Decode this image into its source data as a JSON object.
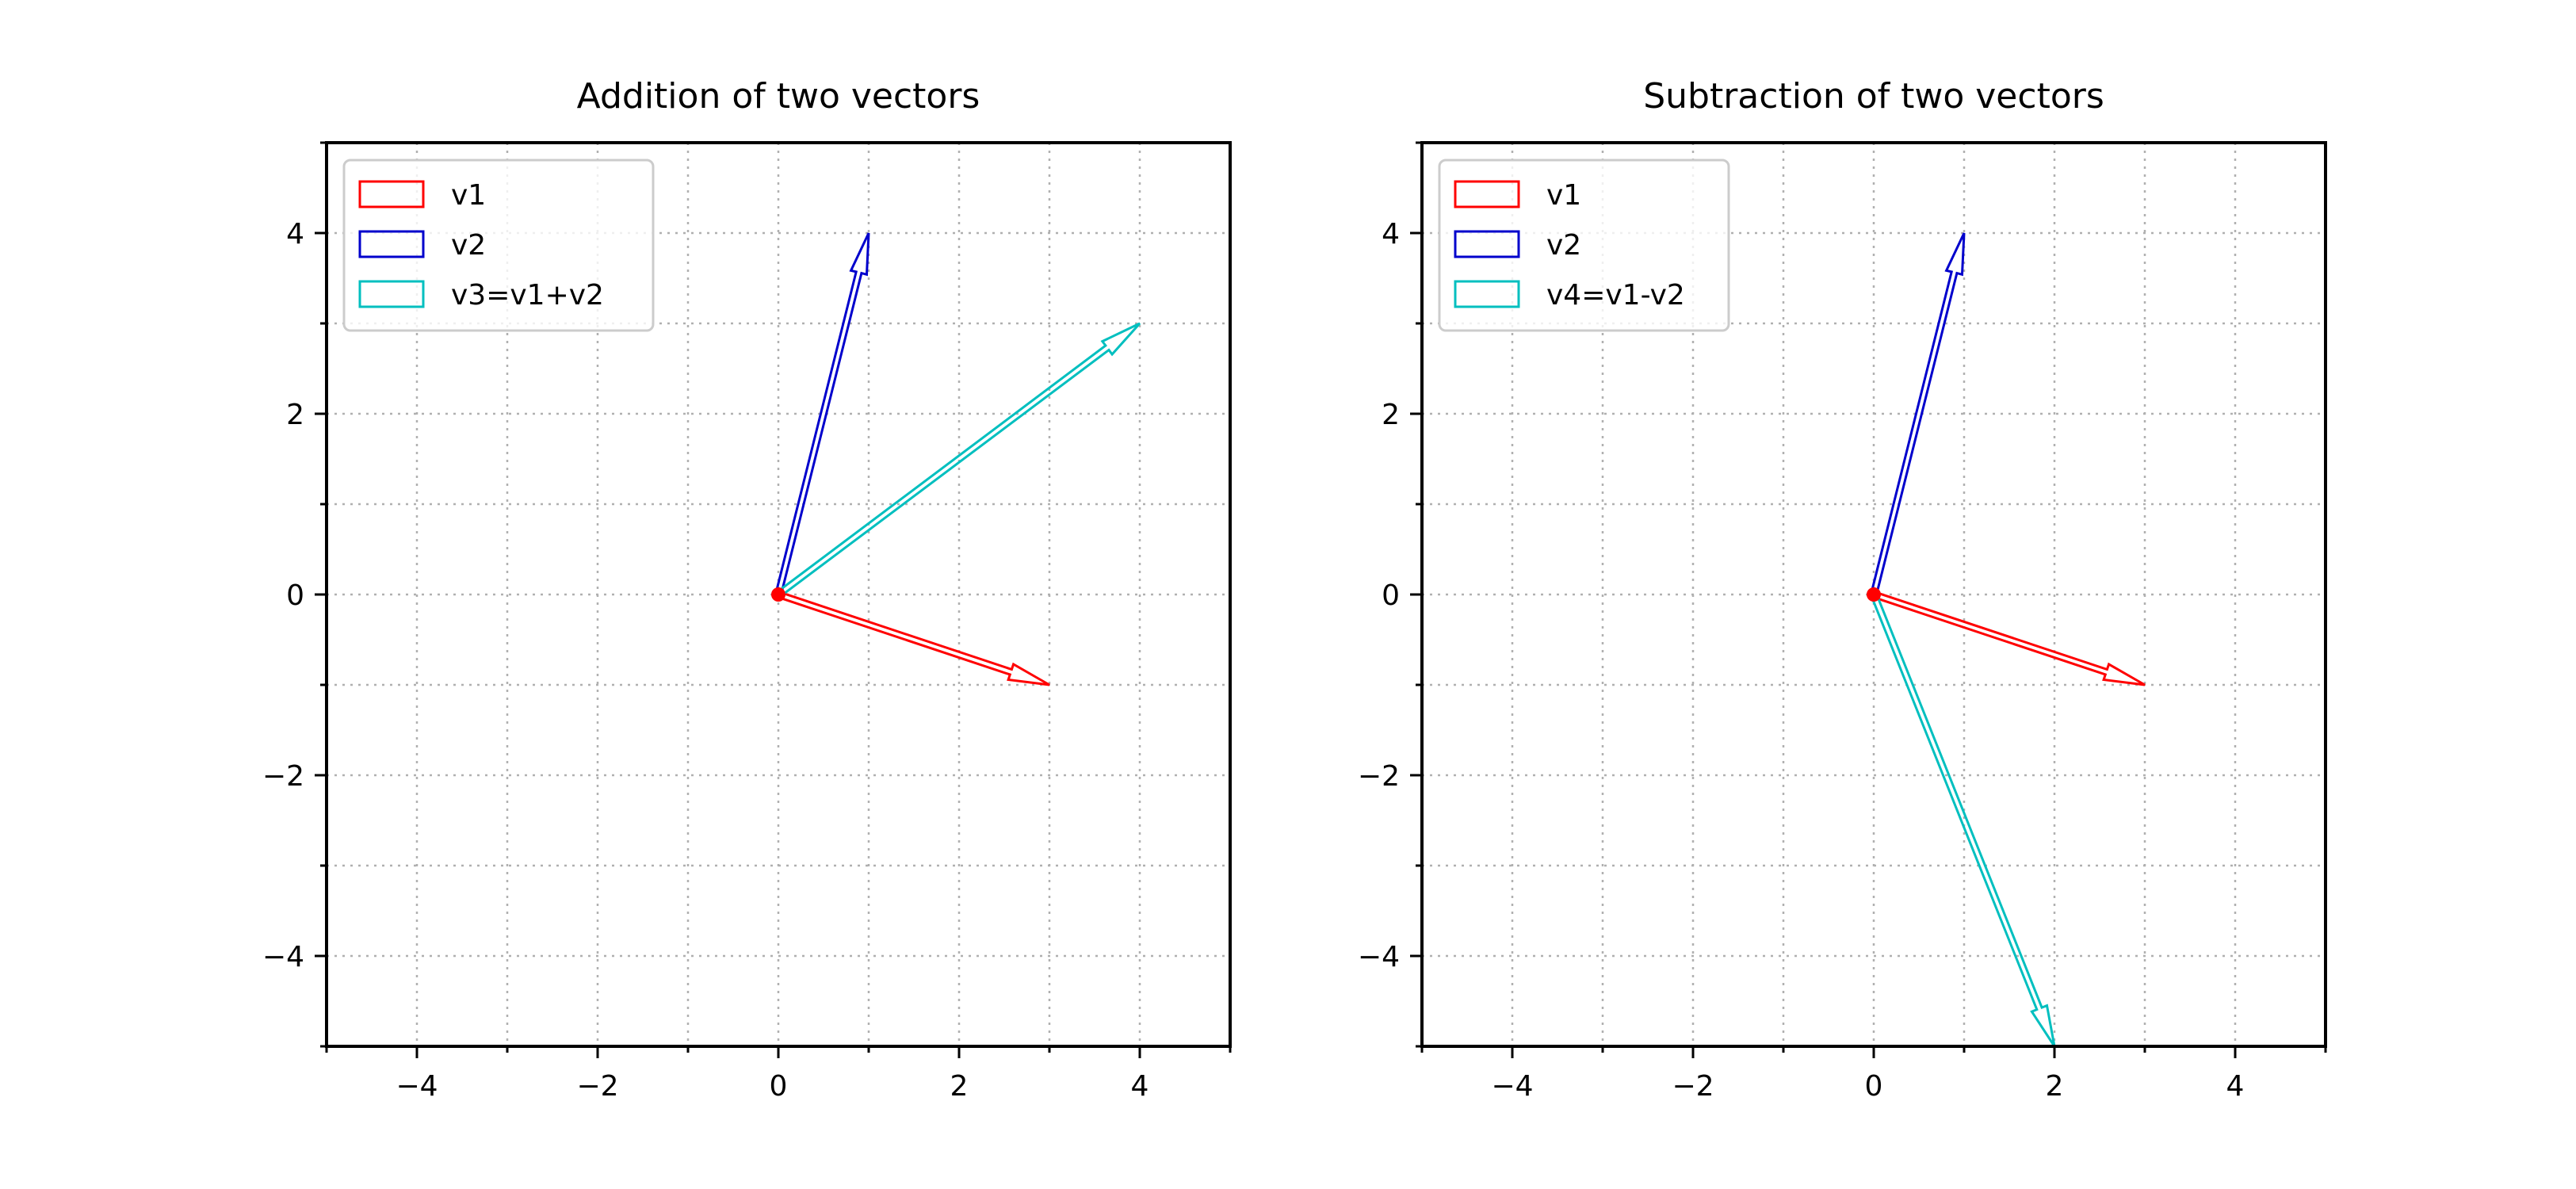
{
  "chart_data": [
    {
      "type": "vector",
      "title": "Addition of two vectors",
      "xlim": [
        -5,
        5
      ],
      "ylim": [
        -5,
        5
      ],
      "major_ticks": [
        -4,
        -2,
        0,
        2,
        4
      ],
      "minor_ticks": [
        -5,
        -3,
        -1,
        1,
        3,
        5
      ],
      "tick_labels": [
        "−4",
        "−2",
        "0",
        "2",
        "4"
      ],
      "grid": true,
      "legend": "top-left",
      "origin": [
        0,
        0
      ],
      "origin_color": "#ff0000",
      "series": [
        {
          "name": "v1",
          "vector": [
            3,
            -1
          ],
          "color": "#ff0000"
        },
        {
          "name": "v2",
          "vector": [
            1,
            4
          ],
          "color": "#0000cc"
        },
        {
          "name": "v3=v1+v2",
          "vector": [
            4,
            3
          ],
          "color": "#00bfbf"
        }
      ]
    },
    {
      "type": "vector",
      "title": "Subtraction of two vectors",
      "xlim": [
        -5,
        5
      ],
      "ylim": [
        -5,
        5
      ],
      "major_ticks": [
        -4,
        -2,
        0,
        2,
        4
      ],
      "minor_ticks": [
        -5,
        -3,
        -1,
        1,
        3,
        5
      ],
      "tick_labels": [
        "−4",
        "−2",
        "0",
        "2",
        "4"
      ],
      "grid": true,
      "legend": "top-left",
      "origin": [
        0,
        0
      ],
      "origin_color": "#ff0000",
      "series": [
        {
          "name": "v1",
          "vector": [
            3,
            -1
          ],
          "color": "#ff0000"
        },
        {
          "name": "v2",
          "vector": [
            1,
            4
          ],
          "color": "#0000cc"
        },
        {
          "name": "v4=v1-v2",
          "vector": [
            2,
            -5
          ],
          "color": "#00bfbf"
        }
      ]
    }
  ]
}
